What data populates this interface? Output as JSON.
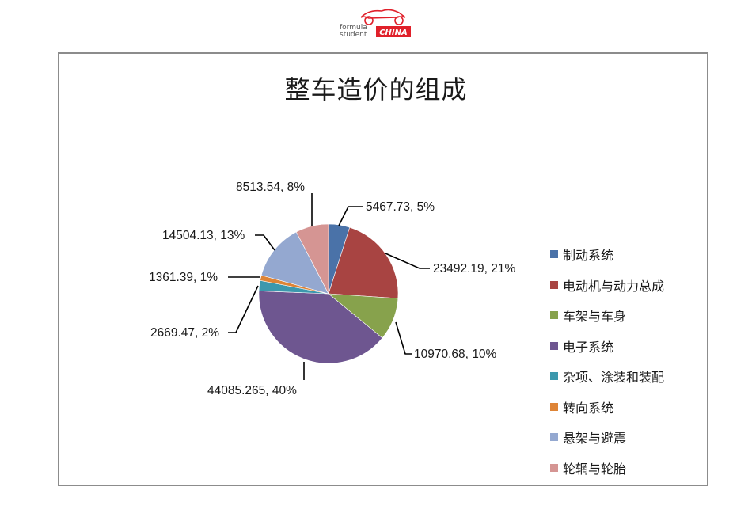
{
  "logo": {
    "line1": "formula",
    "line2": "student",
    "badge": "CHINA",
    "brand_color": "#e0202a"
  },
  "chart_data": {
    "type": "pie",
    "title": "整车造价的组成",
    "legend_position": "right",
    "start_angle_deg": 0,
    "direction": "clockwise",
    "categories": [
      "制动系统",
      "电动机与动力总成",
      "车架与车身",
      "电子系统",
      "杂项、涂装和装配",
      "转向系统",
      "悬架与避震",
      "轮辋与轮胎"
    ],
    "values": [
      5467.73,
      23492.19,
      10970.68,
      44085.265,
      2669.47,
      1361.39,
      14504.13,
      8513.54
    ],
    "percentages": [
      5,
      21,
      10,
      40,
      2,
      1,
      13,
      8
    ],
    "data_labels": [
      "5467.73, 5%",
      "23492.19, 21%",
      "10970.68, 10%",
      "44085.265, 40%",
      "2669.47, 2%",
      "1361.39, 1%",
      "14504.13, 13%",
      "8513.54, 8%"
    ],
    "colors": [
      "#4a72a8",
      "#a84442",
      "#87a24c",
      "#6e5690",
      "#3c98ad",
      "#de8436",
      "#94a8d0",
      "#d59593"
    ]
  },
  "legend": {
    "items": [
      {
        "label": "制动系统",
        "color": "#4a72a8"
      },
      {
        "label": "电动机与动力总成",
        "color": "#a84442"
      },
      {
        "label": "车架与车身",
        "color": "#87a24c"
      },
      {
        "label": "电子系统",
        "color": "#6e5690"
      },
      {
        "label": "杂项、涂装和装配",
        "color": "#3c98ad"
      },
      {
        "label": "转向系统",
        "color": "#de8436"
      },
      {
        "label": "悬架与避震",
        "color": "#94a8d0"
      },
      {
        "label": "轮辋与轮胎",
        "color": "#d59593"
      }
    ]
  }
}
